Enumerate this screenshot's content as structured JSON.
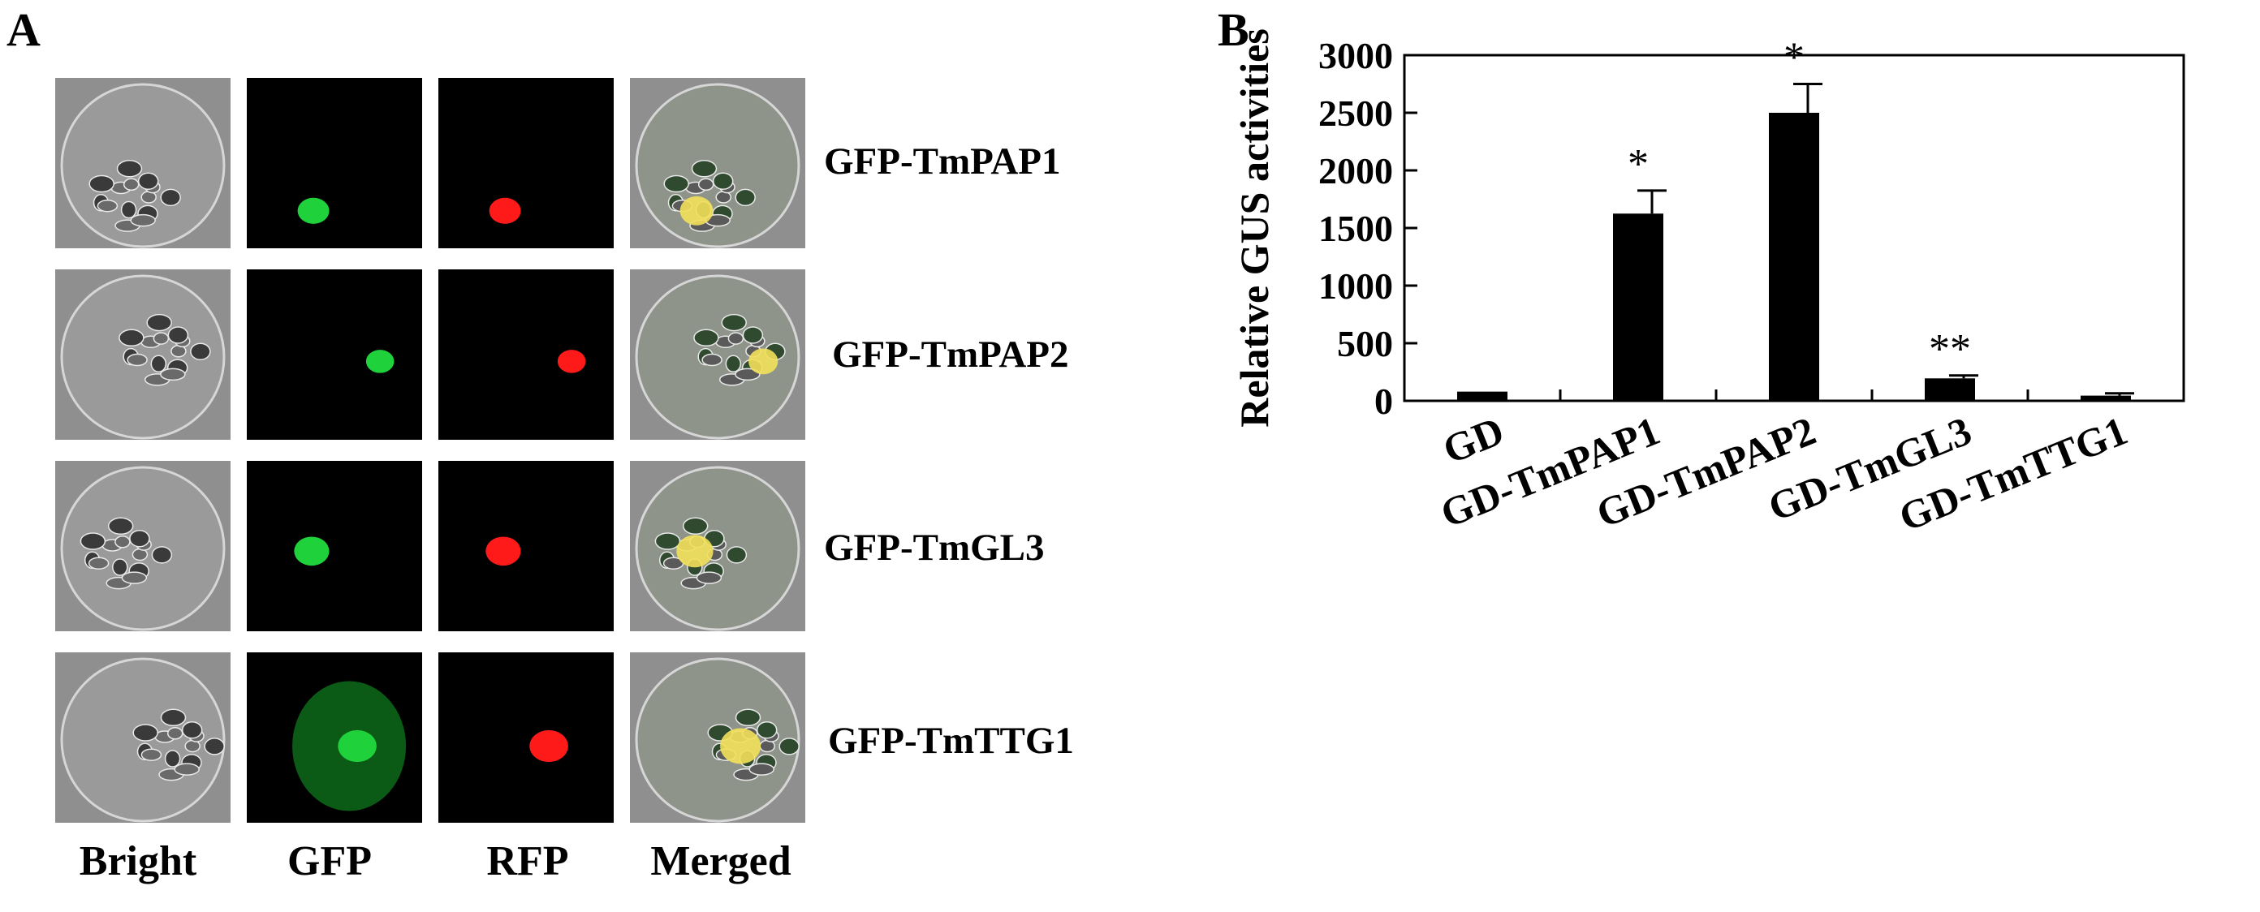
{
  "panel_a": {
    "letter": "A",
    "columns": [
      "Bright",
      "GFP",
      "RFP",
      "Merged"
    ],
    "rows": [
      "GFP-TmPAP1",
      "GFP-TmPAP2",
      "GFP-TmGL3",
      "GFP-TmTTG1"
    ],
    "colors": {
      "gfp": "#1fd13a",
      "rfp": "#ff1a1a",
      "merged": "#f2e05a",
      "bright": "#8f8f8f"
    }
  },
  "panel_b": {
    "letter": "B"
  },
  "chart_data": {
    "type": "bar",
    "categories": [
      "GD",
      "GD-TmPAP1",
      "GD-TmPAP2",
      "GD-TmGL3",
      "GD-TmTTG1"
    ],
    "values": [
      80,
      1625,
      2500,
      195,
      45
    ],
    "errors": [
      0,
      200,
      250,
      25,
      20
    ],
    "significance": [
      "",
      "*",
      "*",
      "**",
      ""
    ],
    "ylabel": "Relative GUS activities",
    "ylim": [
      0,
      3000
    ],
    "yticks": [
      0,
      500,
      1000,
      1500,
      2000,
      2500,
      3000
    ],
    "bar_color": "#000000",
    "grid": false
  }
}
